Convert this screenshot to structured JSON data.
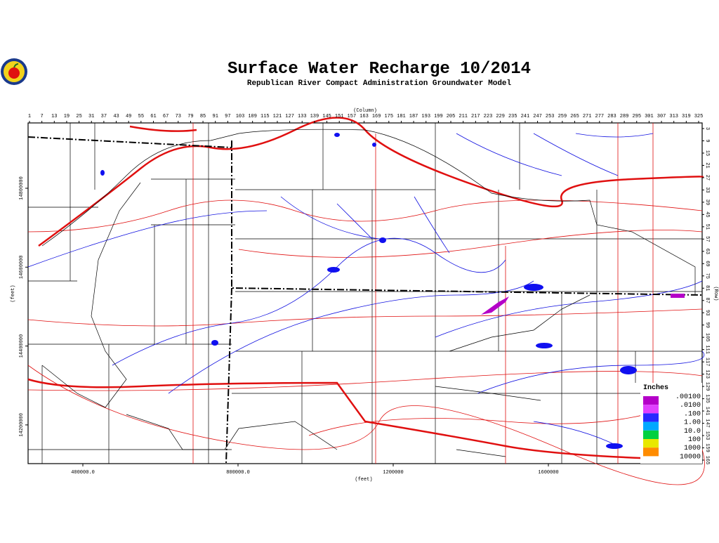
{
  "header": {
    "title": "Surface Water Recharge 10/2014",
    "subtitle": "Republican River Compact Administration Groundwater Model"
  },
  "axes": {
    "column_title": "(Column)",
    "row_title": "(Row)",
    "x_feet_title": "(feet)",
    "y_feet_title": "(feet)",
    "column_ticks": [
      1,
      7,
      13,
      19,
      25,
      31,
      37,
      43,
      49,
      55,
      61,
      67,
      73,
      79,
      85,
      91,
      97,
      103,
      109,
      115,
      121,
      127,
      133,
      139,
      145,
      151,
      157,
      163,
      169,
      175,
      181,
      187,
      193,
      199,
      205,
      211,
      217,
      223,
      229,
      235,
      241,
      247,
      253,
      259,
      265,
      271,
      277,
      283,
      289,
      295,
      301,
      307,
      313,
      319,
      325
    ],
    "row_ticks": [
      3,
      9,
      15,
      21,
      27,
      33,
      39,
      45,
      51,
      57,
      63,
      69,
      75,
      81,
      87,
      93,
      99,
      105,
      111,
      117,
      123,
      129,
      135,
      141,
      147,
      153,
      159,
      165
    ],
    "x_feet_ticks": [
      {
        "value": 400000,
        "label": "400000.0"
      },
      {
        "value": 800000,
        "label": "800000.0"
      },
      1200000,
      1600000
    ],
    "y_feet_ticks": [
      14800000,
      14600000,
      14400000,
      14200000
    ]
  },
  "legend": {
    "title": "Inches",
    "labels": [
      ".00100",
      ".0100",
      ".100",
      "1.00",
      "10.0",
      "100",
      "1000",
      "10000"
    ],
    "colors": [
      "#b400c8",
      "#e040ff",
      "#2828ff",
      "#00a8ff",
      "#00d040",
      "#e8e800",
      "#ff8c00"
    ]
  }
}
